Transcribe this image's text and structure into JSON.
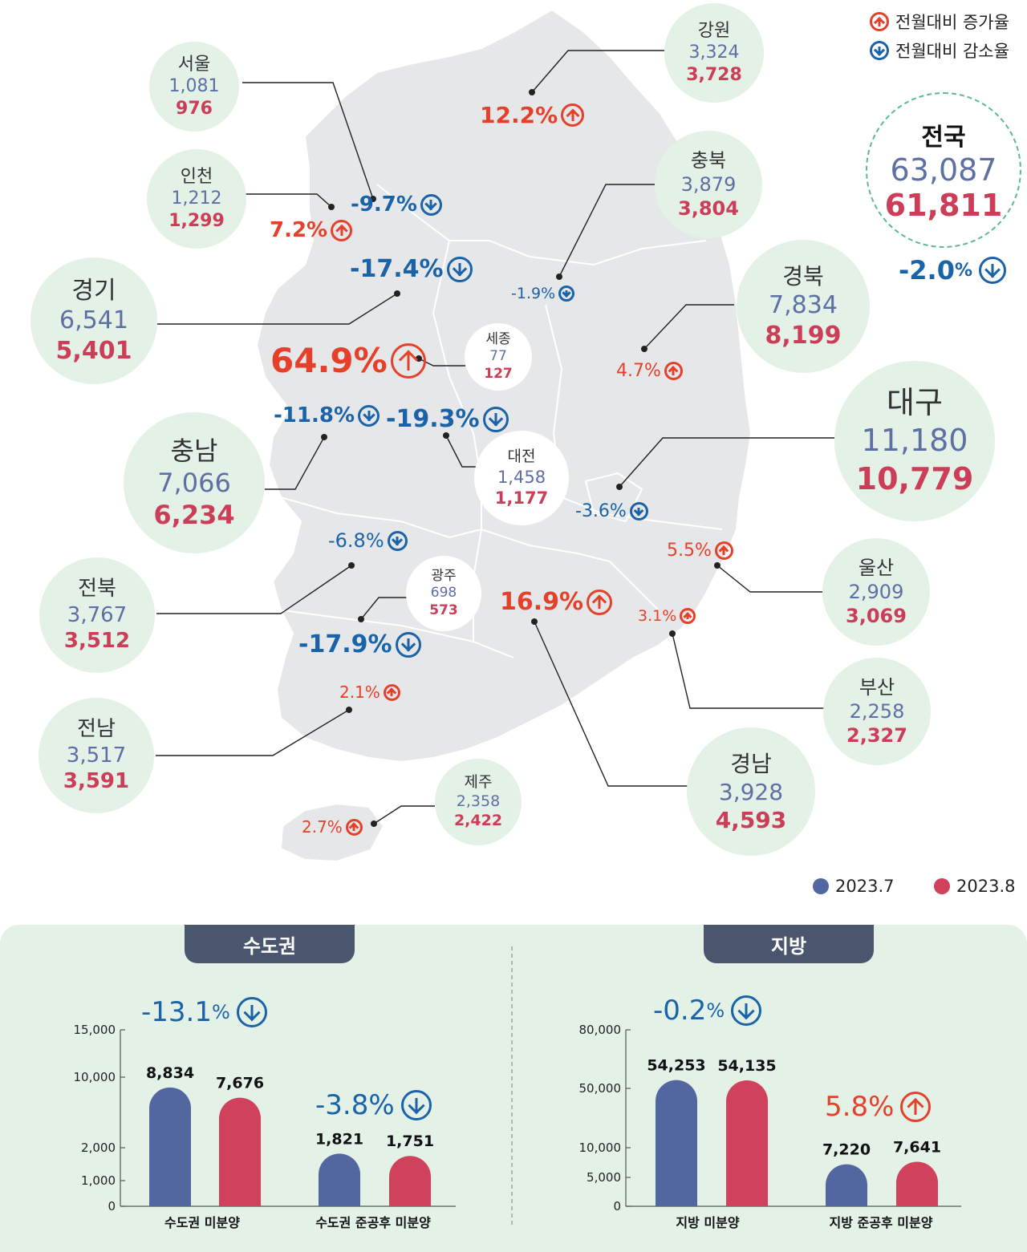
{
  "legend_change": {
    "up_label": "전월대비 증가율",
    "down_label": "전월대비 감소율"
  },
  "legend_period": {
    "jul": "2023.7",
    "aug": "2023.8"
  },
  "colors": {
    "jul": "#5266a0",
    "aug": "#d0415c",
    "up": "#e5412a",
    "down": "#1a63a8",
    "bubble": "#e3f1e7"
  },
  "icons": {
    "up": "arrow-up-circle-icon",
    "down": "arrow-down-circle-icon"
  },
  "national": {
    "name": "전국",
    "jul": "63,087",
    "aug": "61,811",
    "change": "-2.0",
    "unit": "%"
  },
  "regions": [
    {
      "id": "seoul",
      "name": "서울",
      "jul": "1,081",
      "aug": "976",
      "change": "-9.7%",
      "dir": "down"
    },
    {
      "id": "incheon",
      "name": "인천",
      "jul": "1,212",
      "aug": "1,299",
      "change": "7.2%",
      "dir": "up"
    },
    {
      "id": "gyeonggi",
      "name": "경기",
      "jul": "6,541",
      "aug": "5,401",
      "change": "-17.4%",
      "dir": "down"
    },
    {
      "id": "gangwon",
      "name": "강원",
      "jul": "3,324",
      "aug": "3,728",
      "change": "12.2%",
      "dir": "up"
    },
    {
      "id": "chungbuk",
      "name": "충북",
      "jul": "3,879",
      "aug": "3,804",
      "change": "-1.9%",
      "dir": "down"
    },
    {
      "id": "gyeongbuk",
      "name": "경북",
      "jul": "7,834",
      "aug": "8,199",
      "change": "4.7%",
      "dir": "up"
    },
    {
      "id": "sejong",
      "name": "세종",
      "jul": "77",
      "aug": "127",
      "change": "64.9%",
      "dir": "up"
    },
    {
      "id": "chungnam",
      "name": "충남",
      "jul": "7,066",
      "aug": "6,234",
      "change": "-11.8%",
      "dir": "down"
    },
    {
      "id": "daejeon",
      "name": "대전",
      "jul": "1,458",
      "aug": "1,177",
      "change": "-19.3%",
      "dir": "down"
    },
    {
      "id": "daegu",
      "name": "대구",
      "jul": "11,180",
      "aug": "10,779",
      "change": "-3.6%",
      "dir": "down"
    },
    {
      "id": "ulsan",
      "name": "울산",
      "jul": "2,909",
      "aug": "3,069",
      "change": "5.5%",
      "dir": "up"
    },
    {
      "id": "busan",
      "name": "부산",
      "jul": "2,258",
      "aug": "2,327",
      "change": "3.1%",
      "dir": "up"
    },
    {
      "id": "gyeongnam",
      "name": "경남",
      "jul": "3,928",
      "aug": "4,593",
      "change": "16.9%",
      "dir": "up"
    },
    {
      "id": "jeonbuk",
      "name": "전북",
      "jul": "3,767",
      "aug": "3,512",
      "change": "-6.8%",
      "dir": "down"
    },
    {
      "id": "gwangju",
      "name": "광주",
      "jul": "698",
      "aug": "573",
      "change": "-17.9%",
      "dir": "down"
    },
    {
      "id": "jeonnam",
      "name": "전남",
      "jul": "3,517",
      "aug": "3,591",
      "change": "2.1%",
      "dir": "up"
    },
    {
      "id": "jeju",
      "name": "제주",
      "jul": "2,358",
      "aug": "2,422",
      "change": "2.7%",
      "dir": "up"
    }
  ],
  "chart_data": [
    {
      "type": "bar",
      "title": "수도권",
      "categories": [
        "수도권 미분양",
        "수도권 준공후 미분양"
      ],
      "series": [
        {
          "name": "2023.7",
          "values": [
            8834,
            1821
          ]
        },
        {
          "name": "2023.8",
          "values": [
            7676,
            1751
          ]
        }
      ],
      "value_labels": [
        [
          "8,834",
          "1,821"
        ],
        [
          "7,676",
          "1,751"
        ]
      ],
      "changes": [
        {
          "value": "-13.1",
          "unit": "%",
          "dir": "down"
        },
        {
          "value": "-3.8%",
          "unit": "",
          "dir": "down"
        }
      ],
      "yticks": [
        0,
        1000,
        2000,
        10000,
        15000
      ],
      "ytick_labels": [
        "0",
        "1,000",
        "2,000",
        "10,000",
        "15,000"
      ],
      "ylim": [
        0,
        15000
      ]
    },
    {
      "type": "bar",
      "title": "지방",
      "categories": [
        "지방 미분양",
        "지방 준공후 미분양"
      ],
      "series": [
        {
          "name": "2023.7",
          "values": [
            54253,
            7220
          ]
        },
        {
          "name": "2023.8",
          "values": [
            54135,
            7641
          ]
        }
      ],
      "value_labels": [
        [
          "54,253",
          "7,220"
        ],
        [
          "54,135",
          "7,641"
        ]
      ],
      "changes": [
        {
          "value": "-0.2",
          "unit": "%",
          "dir": "down"
        },
        {
          "value": "5.8%",
          "unit": "",
          "dir": "up"
        }
      ],
      "yticks": [
        0,
        5000,
        10000,
        50000,
        80000
      ],
      "ytick_labels": [
        "0",
        "5,000",
        "10,000",
        "50,000",
        "80,000"
      ],
      "ylim": [
        0,
        80000
      ]
    }
  ]
}
